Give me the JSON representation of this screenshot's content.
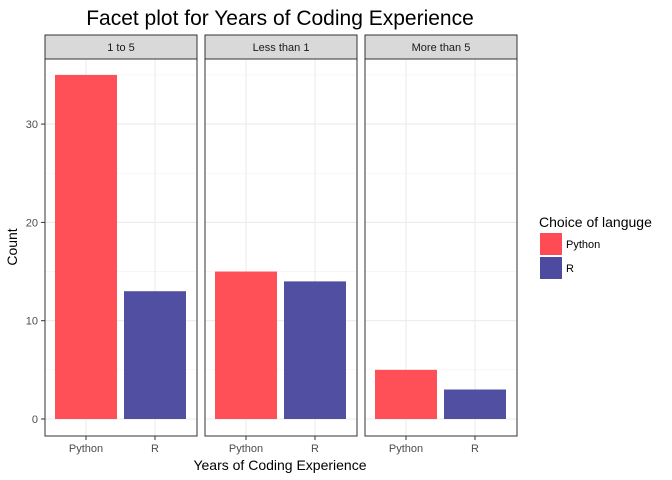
{
  "chart_data": {
    "type": "bar",
    "title": "Facet plot for Years of Coding Experience",
    "xlabel": "Years of Coding Experience",
    "ylabel": "Count",
    "ylim": [
      0,
      35
    ],
    "yticks": [
      0,
      10,
      20,
      30
    ],
    "grid": true,
    "legend": {
      "title": "Choice of languge",
      "position": "right",
      "entries": [
        {
          "label": "Python",
          "color": "#ff4c54"
        },
        {
          "label": "R",
          "color": "#4c4ba0"
        }
      ]
    },
    "categories": [
      "Python",
      "R"
    ],
    "facets": [
      {
        "label": "1 to 5",
        "values": [
          35,
          13
        ]
      },
      {
        "label": "Less than 1",
        "values": [
          15,
          14
        ]
      },
      {
        "label": "More than 5",
        "values": [
          5,
          3
        ]
      }
    ]
  }
}
